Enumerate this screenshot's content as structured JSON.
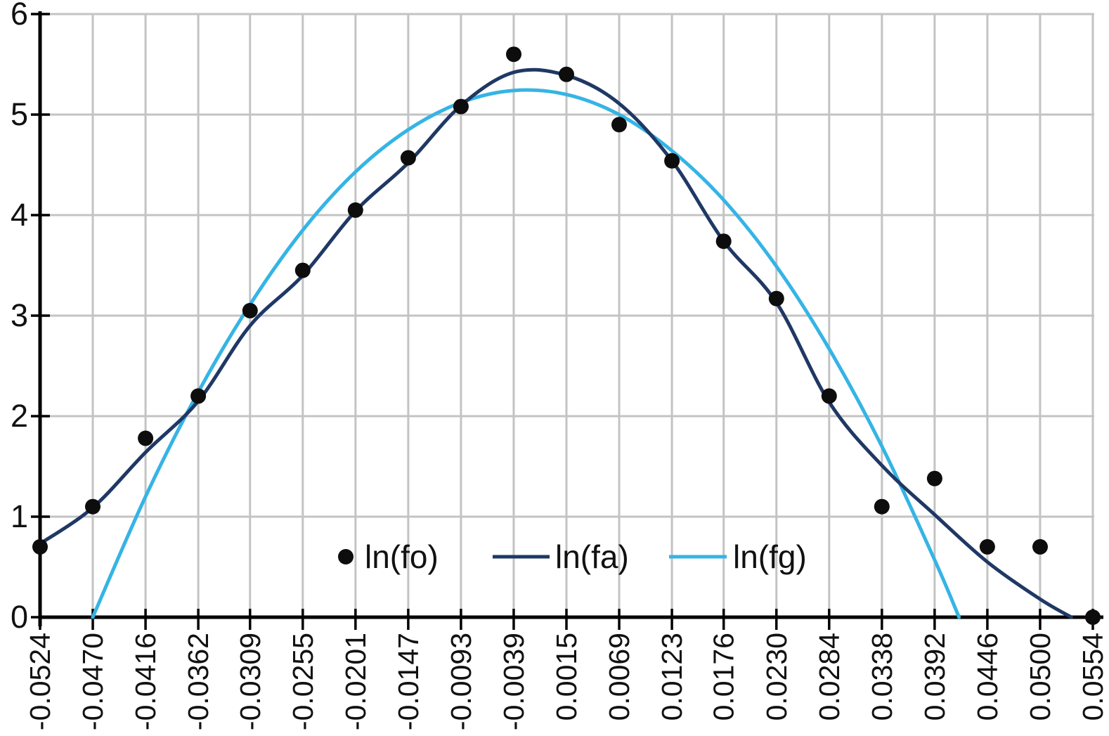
{
  "chart_data": {
    "type": "scatter",
    "title": "",
    "xlabel": "",
    "ylabel": "",
    "xlim": [
      -0.0524,
      0.0554
    ],
    "ylim": [
      0,
      6
    ],
    "grid": "both",
    "x_tick_labels": [
      "-0.0524",
      "-0.0470",
      "-0.0416",
      "-0.0362",
      "-0.0309",
      "-0.0255",
      "-0.0201",
      "-0.0147",
      "-0.0093",
      "-0.0039",
      "0.0015",
      "0.0069",
      "0.0123",
      "0.0176",
      "0.0230",
      "0.0284",
      "0.0338",
      "0.0392",
      "0.0446",
      "0.0500",
      "0.0554"
    ],
    "y_tick_labels": [
      "0",
      "1",
      "2",
      "3",
      "4",
      "5",
      "6"
    ],
    "legend": {
      "position": "inside-bottom-center",
      "items": [
        {
          "label": "ln(fo)",
          "symbol": "filled-circle",
          "color": "#0d0d0d"
        },
        {
          "label": "ln(fa)",
          "symbol": "line",
          "color": "#1f3864"
        },
        {
          "label": "ln(fg)",
          "symbol": "line",
          "color": "#35b4e5"
        }
      ]
    },
    "series": [
      {
        "name": "ln(fo)",
        "type": "scatter",
        "marker": "filled-circle",
        "color": "#0d0d0d",
        "x": [
          -0.0524,
          -0.047,
          -0.0416,
          -0.0362,
          -0.0309,
          -0.0255,
          -0.0201,
          -0.0147,
          -0.0093,
          -0.0039,
          0.0015,
          0.0069,
          0.0123,
          0.0176,
          0.023,
          0.0284,
          0.0338,
          0.0392,
          0.0446,
          0.05,
          0.0554
        ],
        "y": [
          0.7,
          1.1,
          1.78,
          2.2,
          3.05,
          3.45,
          4.05,
          4.57,
          5.08,
          5.6,
          5.4,
          4.9,
          4.54,
          3.74,
          3.17,
          2.2,
          1.1,
          1.38,
          0.7,
          0.7,
          0.0
        ]
      },
      {
        "name": "ln(fa)",
        "type": "line",
        "color": "#1f3864",
        "x": [
          -0.0524,
          -0.047,
          -0.0416,
          -0.0362,
          -0.0309,
          -0.0255,
          -0.0201,
          -0.0147,
          -0.0093,
          -0.0039,
          0.0015,
          0.0069,
          0.0123,
          0.0176,
          0.023,
          0.0284,
          0.0338,
          0.0392,
          0.0446,
          0.05,
          0.0532
        ],
        "y": [
          0.73,
          1.09,
          1.64,
          2.15,
          2.9,
          3.4,
          4.04,
          4.52,
          5.09,
          5.42,
          5.39,
          5.11,
          4.54,
          3.74,
          3.13,
          2.14,
          1.51,
          1.02,
          0.55,
          0.18,
          0.0
        ]
      },
      {
        "name": "ln(fg)",
        "type": "line",
        "color": "#35b4e5",
        "x": [
          -0.047,
          -0.0416,
          -0.0362,
          -0.0309,
          -0.0255,
          -0.0201,
          -0.0147,
          -0.0093,
          -0.0039,
          0.0015,
          0.0069,
          0.0123,
          0.0176,
          0.023,
          0.0284,
          0.0338,
          0.0392,
          0.0417
        ],
        "y": [
          0.0,
          1.2,
          2.24,
          3.11,
          3.85,
          4.43,
          4.85,
          5.12,
          5.24,
          5.2,
          5.0,
          4.64,
          4.15,
          3.49,
          2.67,
          1.7,
          0.57,
          0.0
        ]
      }
    ]
  },
  "colors": {
    "background": "#ffffff",
    "gridline": "#c3c3c3",
    "axis": "#000000",
    "tick_label": "#111111",
    "legend_text": "#111111"
  }
}
